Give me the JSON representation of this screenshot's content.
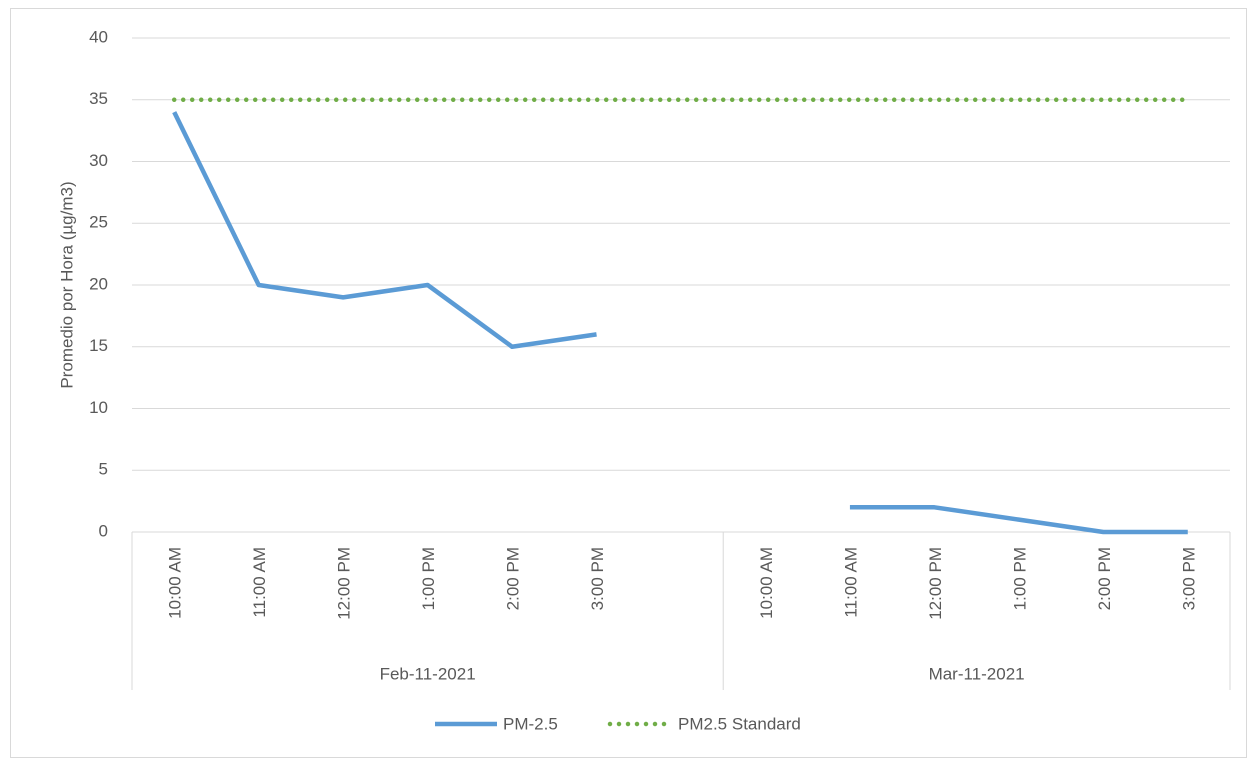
{
  "chart_data": {
    "type": "line",
    "y_label": "Promedio por Hora (µg/m3)",
    "categories": [
      "10:00 AM",
      "11:00 AM",
      "12:00 PM",
      "1:00 PM",
      "2:00 PM",
      "3:00 PM",
      null,
      "10:00 AM",
      "11:00 AM",
      "12:00 PM",
      "1:00 PM",
      "2:00 PM",
      "3:00 PM"
    ],
    "groups": [
      {
        "name": "Feb-11-2021",
        "span": 7
      },
      {
        "name": "Mar-11-2021",
        "span": 6
      }
    ],
    "series": [
      {
        "name": "PM-2.5",
        "color": "#5b9bd5",
        "style": "solid",
        "values": [
          34,
          20,
          19,
          20,
          15,
          16,
          null,
          null,
          2,
          2,
          1,
          0,
          0
        ]
      },
      {
        "name": "PM2.5 Standard",
        "color": "#70ad47",
        "style": "dotted",
        "values": [
          35,
          35,
          35,
          35,
          35,
          35,
          35,
          35,
          35,
          35,
          35,
          35,
          35
        ]
      }
    ],
    "ylim": [
      0,
      40
    ],
    "yticks": [
      0,
      5,
      10,
      15,
      20,
      25,
      30,
      35,
      40
    ],
    "grid": true,
    "legend": "bottom"
  }
}
